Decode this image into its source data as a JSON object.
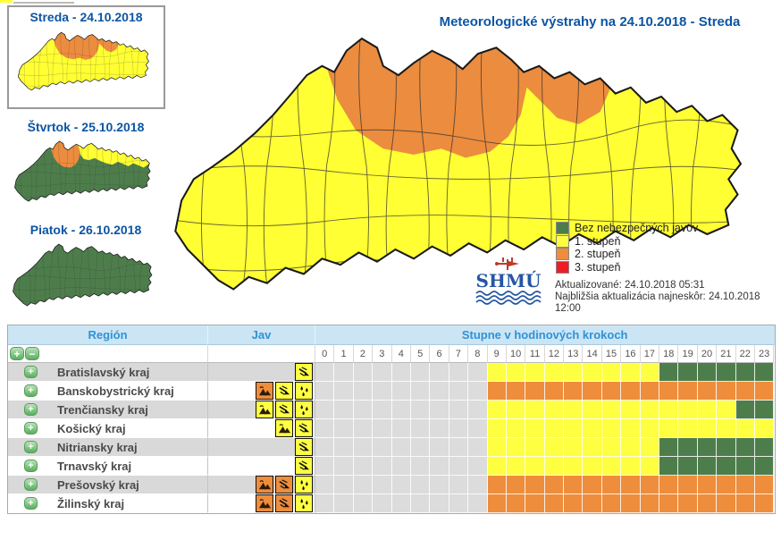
{
  "colors": {
    "level1": "#FFFF42",
    "level2": "#EE8D3C",
    "level3": "#EE1C25",
    "no_danger": "#4E7D4C",
    "past": "#DCDCDC",
    "map_yellow": "#FFFF33",
    "map_orange": "#EC8C3E",
    "map_green": "#4E7D4C",
    "title_blue": "#0B55A4",
    "header_blue": "#2E92D6"
  },
  "thumbnails": [
    {
      "title": "Streda - 24.10.2018",
      "scheme": "streda",
      "selected": true
    },
    {
      "title": "Štvrtok - 25.10.2018",
      "scheme": "stvrtok",
      "selected": false
    },
    {
      "title": "Piatok - 26.10.2018",
      "scheme": "piatok",
      "selected": false
    }
  ],
  "main_map": {
    "title": "Meteorologické výstrahy na 24.10.2018 - Streda"
  },
  "legend": {
    "items": [
      {
        "label": "Bez nebezpečných javov",
        "color": "#4E7D4C"
      },
      {
        "label": "1. stupeň",
        "color": "#FFFF42"
      },
      {
        "label": "2. stupeň",
        "color": "#EE8D3C"
      },
      {
        "label": "3. stupeň",
        "color": "#EE1C25"
      }
    ]
  },
  "status": {
    "line1": "Aktualizované: 24.10.2018 05:31",
    "line2": "Najbližšia aktualizácia najneskôr: 24.10.2018",
    "line3": "12:00"
  },
  "logo": {
    "text": "SHMÚ"
  },
  "table": {
    "headers": {
      "region": "Región",
      "jav": "Jav",
      "hours": "Stupne v hodinových krokoch"
    },
    "expand_all_label": "+",
    "collapse_all_label": "−",
    "row_expand_label": "+",
    "hour_labels": [
      "0",
      "1",
      "2",
      "3",
      "4",
      "5",
      "6",
      "7",
      "8",
      "9",
      "10",
      "11",
      "12",
      "13",
      "14",
      "15",
      "16",
      "17",
      "18",
      "19",
      "20",
      "21",
      "22",
      "23"
    ],
    "rows": [
      {
        "region": "Bratislavský kraj",
        "javy": [
          {
            "type": "wind",
            "level": 1
          }
        ],
        "hours": [
          "past",
          "past",
          "past",
          "past",
          "past",
          "past",
          "past",
          "past",
          "past",
          "1",
          "1",
          "1",
          "1",
          "1",
          "1",
          "1",
          "1",
          "1",
          "ok",
          "ok",
          "ok",
          "ok",
          "ok",
          "ok"
        ]
      },
      {
        "region": "Banskobystrický kraj",
        "javy": [
          {
            "type": "wind-mountains",
            "level": 2
          },
          {
            "type": "wind",
            "level": 1
          },
          {
            "type": "rain",
            "level": 1
          }
        ],
        "hours": [
          "past",
          "past",
          "past",
          "past",
          "past",
          "past",
          "past",
          "past",
          "past",
          "2",
          "2",
          "2",
          "2",
          "2",
          "2",
          "2",
          "2",
          "2",
          "2",
          "2",
          "2",
          "2",
          "2",
          "2"
        ]
      },
      {
        "region": "Trenčiansky kraj",
        "javy": [
          {
            "type": "wind-mountains",
            "level": 1
          },
          {
            "type": "wind",
            "level": 1
          },
          {
            "type": "rain",
            "level": 1
          }
        ],
        "hours": [
          "past",
          "past",
          "past",
          "past",
          "past",
          "past",
          "past",
          "past",
          "past",
          "1",
          "1",
          "1",
          "1",
          "1",
          "1",
          "1",
          "1",
          "1",
          "1",
          "1",
          "1",
          "1",
          "ok",
          "ok"
        ]
      },
      {
        "region": "Košický kraj",
        "javy": [
          {
            "type": "wind-mountains",
            "level": 1
          },
          {
            "type": "wind",
            "level": 1
          }
        ],
        "hours": [
          "past",
          "past",
          "past",
          "past",
          "past",
          "past",
          "past",
          "past",
          "past",
          "1",
          "1",
          "1",
          "1",
          "1",
          "1",
          "1",
          "1",
          "1",
          "1",
          "1",
          "1",
          "1",
          "1",
          "1"
        ]
      },
      {
        "region": "Nitriansky kraj",
        "javy": [
          {
            "type": "wind",
            "level": 1
          }
        ],
        "hours": [
          "past",
          "past",
          "past",
          "past",
          "past",
          "past",
          "past",
          "past",
          "past",
          "1",
          "1",
          "1",
          "1",
          "1",
          "1",
          "1",
          "1",
          "1",
          "ok",
          "ok",
          "ok",
          "ok",
          "ok",
          "ok"
        ]
      },
      {
        "region": "Trnavský kraj",
        "javy": [
          {
            "type": "wind",
            "level": 1
          }
        ],
        "hours": [
          "past",
          "past",
          "past",
          "past",
          "past",
          "past",
          "past",
          "past",
          "past",
          "1",
          "1",
          "1",
          "1",
          "1",
          "1",
          "1",
          "1",
          "1",
          "ok",
          "ok",
          "ok",
          "ok",
          "ok",
          "ok"
        ]
      },
      {
        "region": "Prešovský kraj",
        "javy": [
          {
            "type": "wind-mountains",
            "level": 2
          },
          {
            "type": "wind",
            "level": 2
          },
          {
            "type": "rain",
            "level": 1
          }
        ],
        "hours": [
          "past",
          "past",
          "past",
          "past",
          "past",
          "past",
          "past",
          "past",
          "past",
          "2",
          "2",
          "2",
          "2",
          "2",
          "2",
          "2",
          "2",
          "2",
          "2",
          "2",
          "2",
          "2",
          "2",
          "2"
        ]
      },
      {
        "region": "Žilinský kraj",
        "javy": [
          {
            "type": "wind-mountains",
            "level": 2
          },
          {
            "type": "wind",
            "level": 2
          },
          {
            "type": "rain",
            "level": 1
          }
        ],
        "hours": [
          "past",
          "past",
          "past",
          "past",
          "past",
          "past",
          "past",
          "past",
          "past",
          "2",
          "2",
          "2",
          "2",
          "2",
          "2",
          "2",
          "2",
          "2",
          "2",
          "2",
          "2",
          "2",
          "2",
          "2"
        ]
      }
    ]
  }
}
